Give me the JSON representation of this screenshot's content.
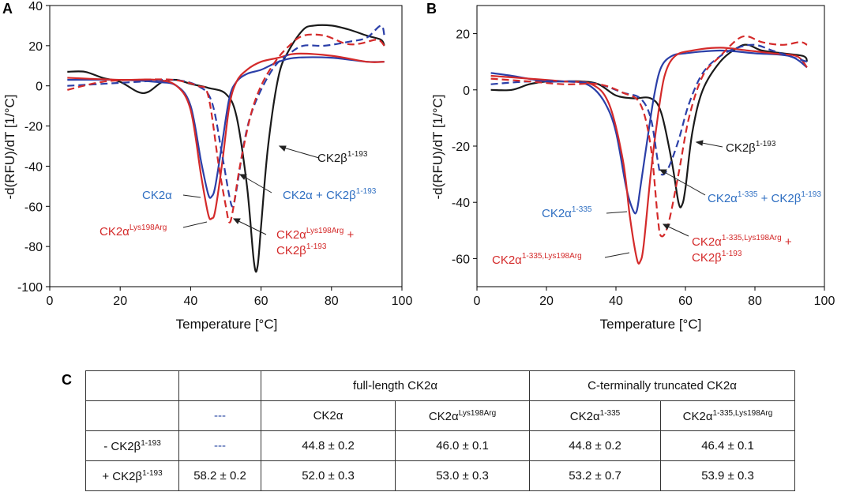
{
  "panels": [
    {
      "letter": "A",
      "ylabel": "-d(RFU)/dT [1/°C]",
      "xlabel": "Temperature [°C]",
      "xlim": [
        0,
        100
      ],
      "ylim": [
        -100,
        40
      ],
      "xticks": [
        "0",
        "20",
        "40",
        "60",
        "80",
        "100"
      ],
      "yticks": [
        "40",
        "20",
        "0",
        "-20",
        "-40",
        "-60",
        "-80",
        "-100"
      ]
    },
    {
      "letter": "B",
      "ylabel": "-d(RFU)/dT [1/°C]",
      "xlabel": "Temperature [°C]",
      "xlim": [
        0,
        100
      ],
      "ylim": [
        -70,
        30
      ],
      "xticks": [
        "0",
        "20",
        "40",
        "60",
        "80",
        "100"
      ],
      "yticks": [
        "20",
        "0",
        "-20",
        "-40",
        "-60"
      ]
    }
  ],
  "annotations": {
    "a_beta": {
      "base": "CK2β",
      "sup": "1-193"
    },
    "a_wt": {
      "base": "CK2α"
    },
    "a_wt_beta": {
      "base": "CK2α + CK2β",
      "sup": "1-193"
    },
    "a_lys": {
      "base": "CK2α",
      "sup": "Lys198Arg"
    },
    "a_lys_beta_l1": {
      "base": "CK2α",
      "sup": "Lys198Arg",
      "tail": " +"
    },
    "a_lys_beta_l2": {
      "base": "CK2β",
      "sup": "1-193"
    },
    "b_beta": {
      "base": "CK2β",
      "sup": "1-193"
    },
    "b_trunc": {
      "base": "CK2α",
      "sup": "1-335"
    },
    "b_trunc_beta": {
      "base": "CK2α",
      "sup": "1-335",
      "tail": " + CK2β",
      "sup2": "1-193"
    },
    "b_tlys": {
      "base": "CK2α",
      "sup": "1-335,Lys198Arg"
    },
    "b_tlys_beta_l1": {
      "base": "CK2α",
      "sup": "1-335,Lys198Arg",
      "tail": " +"
    },
    "b_tlys_beta_l2": {
      "base": "CK2β",
      "sup": "1-193"
    }
  },
  "table": {
    "letter": "C",
    "group_full": "full-length CK2α",
    "group_trunc": "C-terminally truncated CK2α",
    "dash": "---",
    "cols": {
      "wt": {
        "base": "CK2α"
      },
      "lys": {
        "base": "CK2α",
        "sup": "Lys198Arg"
      },
      "trunc": {
        "base": "CK2α",
        "sup": "1-335"
      },
      "tlys": {
        "base": "CK2α",
        "sup": "1-335,Lys198Arg"
      }
    },
    "row_minus": {
      "base": "- CK2β",
      "sup": "1-193",
      "values": [
        "44.8 ± 0.2",
        "46.0 ± 0.1",
        "44.8 ± 0.2",
        "46.4 ± 0.1"
      ]
    },
    "row_plus": {
      "base": "+ CK2β",
      "sup": "1-193",
      "beta": "58.2 ± 0.2",
      "values": [
        "52.0 ± 0.3",
        "53.0 ± 0.3",
        "53.2 ± 0.7",
        "53.9 ± 0.3"
      ]
    }
  },
  "colors": {
    "black": "#1a1a1a",
    "blue": "#2b3fa8",
    "red": "#d42a2a",
    "label_blue": "#2f6fc2",
    "label_red": "#d42a2a"
  },
  "chart_data": [
    {
      "type": "line",
      "title": "A",
      "xlabel": "Temperature [°C]",
      "ylabel": "-d(RFU)/dT [1/°C]",
      "xlim": [
        0,
        100
      ],
      "ylim": [
        -100,
        40
      ],
      "series": [
        {
          "name": "CK2β1-193",
          "color": "black",
          "style": "solid",
          "points": [
            [
              5,
              7
            ],
            [
              10,
              7
            ],
            [
              15,
              4
            ],
            [
              20,
              2
            ],
            [
              25,
              -3
            ],
            [
              28,
              -3
            ],
            [
              32,
              2
            ],
            [
              36,
              3
            ],
            [
              40,
              1
            ],
            [
              45,
              -1
            ],
            [
              50,
              -4
            ],
            [
              53,
              -15
            ],
            [
              56,
              -50
            ],
            [
              58,
              -88
            ],
            [
              59,
              -90
            ],
            [
              60,
              -70
            ],
            [
              62,
              -30
            ],
            [
              65,
              5
            ],
            [
              68,
              18
            ],
            [
              72,
              28
            ],
            [
              75,
              30
            ],
            [
              80,
              30
            ],
            [
              85,
              28
            ],
            [
              90,
              25
            ],
            [
              94,
              23
            ],
            [
              95,
              20
            ]
          ]
        },
        {
          "name": "CK2α",
          "color": "blue",
          "style": "solid",
          "points": [
            [
              5,
              3
            ],
            [
              20,
              3
            ],
            [
              30,
              2
            ],
            [
              36,
              0
            ],
            [
              40,
              -10
            ],
            [
              43,
              -38
            ],
            [
              45,
              -54
            ],
            [
              46,
              -55
            ],
            [
              47,
              -50
            ],
            [
              49,
              -28
            ],
            [
              51,
              -6
            ],
            [
              53,
              2
            ],
            [
              56,
              6
            ],
            [
              60,
              8
            ],
            [
              65,
              12
            ],
            [
              70,
              14
            ],
            [
              80,
              14
            ],
            [
              90,
              12
            ],
            [
              95,
              12
            ]
          ]
        },
        {
          "name": "CK2αLys198Arg",
          "color": "red",
          "style": "solid",
          "points": [
            [
              5,
              4
            ],
            [
              20,
              3
            ],
            [
              30,
              3
            ],
            [
              36,
              0
            ],
            [
              40,
              -12
            ],
            [
              43,
              -45
            ],
            [
              45,
              -64
            ],
            [
              46,
              -66
            ],
            [
              47,
              -62
            ],
            [
              49,
              -38
            ],
            [
              51,
              -10
            ],
            [
              53,
              2
            ],
            [
              56,
              8
            ],
            [
              60,
              12
            ],
            [
              65,
              14
            ],
            [
              70,
              16
            ],
            [
              80,
              15
            ],
            [
              90,
              12
            ],
            [
              95,
              12
            ]
          ]
        },
        {
          "name": "CK2α + CK2β1-193",
          "color": "blue",
          "style": "dashed",
          "points": [
            [
              5,
              0
            ],
            [
              15,
              1
            ],
            [
              25,
              2
            ],
            [
              35,
              3
            ],
            [
              42,
              0
            ],
            [
              46,
              -8
            ],
            [
              49,
              -35
            ],
            [
              51,
              -55
            ],
            [
              52,
              -60
            ],
            [
              53,
              -52
            ],
            [
              55,
              -30
            ],
            [
              57,
              -15
            ],
            [
              60,
              -2
            ],
            [
              64,
              10
            ],
            [
              68,
              16
            ],
            [
              72,
              20
            ],
            [
              78,
              20
            ],
            [
              85,
              22
            ],
            [
              90,
              24
            ],
            [
              94,
              30
            ],
            [
              95,
              25
            ]
          ]
        },
        {
          "name": "CK2αLys198Arg + CK2β1-193",
          "color": "red",
          "style": "dashed",
          "points": [
            [
              5,
              -2
            ],
            [
              15,
              2
            ],
            [
              25,
              3
            ],
            [
              35,
              3
            ],
            [
              42,
              0
            ],
            [
              45,
              -5
            ],
            [
              48,
              -40
            ],
            [
              50,
              -60
            ],
            [
              51,
              -68
            ],
            [
              52,
              -62
            ],
            [
              54,
              -40
            ],
            [
              57,
              -15
            ],
            [
              60,
              0
            ],
            [
              64,
              12
            ],
            [
              68,
              20
            ],
            [
              72,
              25
            ],
            [
              78,
              25
            ],
            [
              84,
              21
            ],
            [
              88,
              21
            ],
            [
              93,
              23
            ],
            [
              95,
              20
            ]
          ]
        }
      ]
    },
    {
      "type": "line",
      "title": "B",
      "xlabel": "Temperature [°C]",
      "ylabel": "-d(RFU)/dT [1/°C]",
      "xlim": [
        0,
        100
      ],
      "ylim": [
        -70,
        30
      ],
      "series": [
        {
          "name": "CK2β1-193",
          "color": "black",
          "style": "solid",
          "points": [
            [
              4,
              0
            ],
            [
              10,
              0
            ],
            [
              15,
              2
            ],
            [
              20,
              3
            ],
            [
              25,
              3
            ],
            [
              30,
              3
            ],
            [
              35,
              2
            ],
            [
              40,
              -2
            ],
            [
              45,
              -3
            ],
            [
              50,
              -3
            ],
            [
              53,
              -8
            ],
            [
              56,
              -25
            ],
            [
              58,
              -40
            ],
            [
              59,
              -41
            ],
            [
              60,
              -35
            ],
            [
              62,
              -15
            ],
            [
              65,
              0
            ],
            [
              70,
              10
            ],
            [
              75,
              15
            ],
            [
              78,
              16
            ],
            [
              82,
              14
            ],
            [
              88,
              13
            ],
            [
              94,
              12
            ],
            [
              95,
              10
            ]
          ]
        },
        {
          "name": "CK2α1-335",
          "color": "blue",
          "style": "solid",
          "points": [
            [
              4,
              6
            ],
            [
              10,
              5
            ],
            [
              20,
              3
            ],
            [
              28,
              3
            ],
            [
              33,
              1
            ],
            [
              37,
              -5
            ],
            [
              40,
              -15
            ],
            [
              43,
              -35
            ],
            [
              45,
              -43
            ],
            [
              46,
              -43
            ],
            [
              47,
              -35
            ],
            [
              49,
              -18
            ],
            [
              51,
              -2
            ],
            [
              53,
              8
            ],
            [
              56,
              12
            ],
            [
              60,
              13
            ],
            [
              70,
              14
            ],
            [
              80,
              13
            ],
            [
              90,
              12
            ],
            [
              95,
              8
            ]
          ]
        },
        {
          "name": "CK2α1-335,Lys198Arg",
          "color": "red",
          "style": "solid",
          "points": [
            [
              4,
              5
            ],
            [
              15,
              4
            ],
            [
              25,
              3
            ],
            [
              33,
              2
            ],
            [
              38,
              -5
            ],
            [
              42,
              -25
            ],
            [
              44,
              -45
            ],
            [
              46,
              -60
            ],
            [
              47,
              -61
            ],
            [
              48,
              -55
            ],
            [
              50,
              -30
            ],
            [
              52,
              -10
            ],
            [
              54,
              5
            ],
            [
              57,
              12
            ],
            [
              62,
              14
            ],
            [
              70,
              15
            ],
            [
              78,
              14
            ],
            [
              85,
              13
            ],
            [
              92,
              12
            ],
            [
              95,
              8
            ]
          ]
        },
        {
          "name": "CK2α1-335 + CK2β1-193",
          "color": "blue",
          "style": "dashed",
          "points": [
            [
              4,
              2
            ],
            [
              15,
              3
            ],
            [
              25,
              3
            ],
            [
              35,
              2
            ],
            [
              42,
              -1
            ],
            [
              47,
              -3
            ],
            [
              50,
              -10
            ],
            [
              52,
              -25
            ],
            [
              53,
              -30
            ],
            [
              55,
              -28
            ],
            [
              58,
              -18
            ],
            [
              61,
              -5
            ],
            [
              65,
              6
            ],
            [
              70,
              12
            ],
            [
              75,
              15
            ],
            [
              80,
              16
            ],
            [
              85,
              14
            ],
            [
              90,
              12
            ],
            [
              95,
              10
            ]
          ]
        },
        {
          "name": "CK2α1-335,Lys198Arg + CK2β1-193",
          "color": "red",
          "style": "dashed",
          "points": [
            [
              4,
              4
            ],
            [
              15,
              3
            ],
            [
              25,
              2
            ],
            [
              35,
              2
            ],
            [
              42,
              -1
            ],
            [
              47,
              -5
            ],
            [
              50,
              -20
            ],
            [
              52,
              -45
            ],
            [
              53,
              -52
            ],
            [
              55,
              -48
            ],
            [
              58,
              -30
            ],
            [
              61,
              -10
            ],
            [
              65,
              5
            ],
            [
              70,
              12
            ],
            [
              75,
              18
            ],
            [
              78,
              19
            ],
            [
              82,
              17
            ],
            [
              88,
              16
            ],
            [
              93,
              17
            ],
            [
              95,
              16
            ]
          ]
        }
      ]
    }
  ]
}
